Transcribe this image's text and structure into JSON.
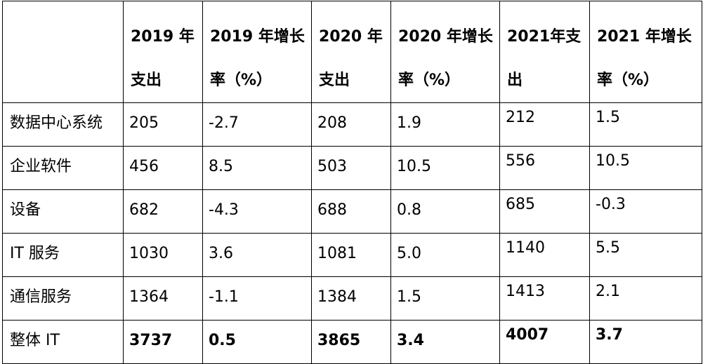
{
  "table": {
    "headers": [
      "",
      "2019 年支出",
      "2019 年增长率（%）",
      "2020 年支出",
      "2020 年增长率（%）",
      "2021年支出",
      "2021 年增长率（%）"
    ],
    "rows": [
      [
        "数据中心系统",
        "205",
        "-2.7",
        "208",
        "1.9",
        "212",
        "1.5"
      ],
      [
        "企业软件",
        "456",
        "8.5",
        "503",
        "10.5",
        "556",
        "10.5"
      ],
      [
        "设备",
        "682",
        "-4.3",
        "688",
        "0.8",
        "685",
        "-0.3"
      ],
      [
        "IT 服务",
        "1030",
        "3.6",
        "1081",
        "5.0",
        "1140",
        "5.5"
      ],
      [
        "通信服务",
        "1364",
        "-1.1",
        "1384",
        "1.5",
        "1413",
        "2.1"
      ],
      [
        "整体 IT",
        "3737",
        "0.5",
        "3865",
        "3.4",
        "4007",
        "3.7"
      ]
    ]
  }
}
